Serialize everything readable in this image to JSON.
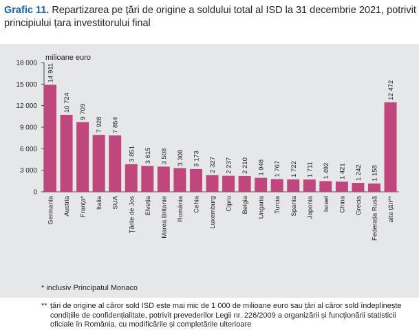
{
  "title": {
    "label": "Grafic 11.",
    "text": "Repartizarea pe țări de origine a soldului total al ISD la 31 decembrie 2021, potrivit principiului țara investitorului final"
  },
  "colors": {
    "bar": "#c0477d",
    "panel": "#e6e7e8",
    "title_label": "#1c5ea8",
    "text": "#231f20"
  },
  "chart_data": {
    "type": "bar",
    "title": "",
    "unit_label": "milioane euro",
    "xlabel": "",
    "ylabel": "",
    "ylim": [
      0,
      18000
    ],
    "yticks": [
      0,
      3000,
      6000,
      9000,
      12000,
      15000,
      18000
    ],
    "ytick_labels": [
      "0",
      "3 000",
      "6 000",
      "9 000",
      "12 000",
      "15 000",
      "18 000"
    ],
    "grid": false,
    "legend": "none",
    "categories": [
      "Germania",
      "Austria",
      "Franța*",
      "Italia",
      "SUA",
      "Țările de Jos",
      "Elveția",
      "Marea Britanie",
      "România",
      "Cehia",
      "Luxemburg",
      "Cipru",
      "Belgia",
      "Ungaria",
      "Turcia",
      "Spania",
      "Japonia",
      "Israel",
      "China",
      "Grecia",
      "Federația Rusă",
      "alte țări**"
    ],
    "values": [
      14911,
      10724,
      9709,
      7928,
      7854,
      3851,
      3615,
      3508,
      3308,
      3173,
      2327,
      2237,
      2210,
      1948,
      1767,
      1722,
      1711,
      1492,
      1421,
      1242,
      1158,
      12472
    ],
    "value_labels": [
      "14 911",
      "10 724",
      "9 709",
      "7 928",
      "7 854",
      "3 851",
      "3 615",
      "3 508",
      "3 308",
      "3 173",
      "2 327",
      "2 237",
      "2 210",
      "1 948",
      "1 767",
      "1 722",
      "1 711",
      "1 492",
      "1 421",
      "1 242",
      "1 158",
      "12 472"
    ]
  },
  "footnotes": {
    "note1": "* inclusiv Principatul Monaco",
    "note2_marker": "**",
    "note2": "țări de origine al căror sold ISD este mai mic de 1 000 de milioane euro sau țări al căror sold îndeplinește condițiile de confidențialitate, potrivit prevederilor Legii nr. 226/2009 a organizării și funcționării statisticii oficiale în România, cu modificările și completările ulterioare"
  }
}
